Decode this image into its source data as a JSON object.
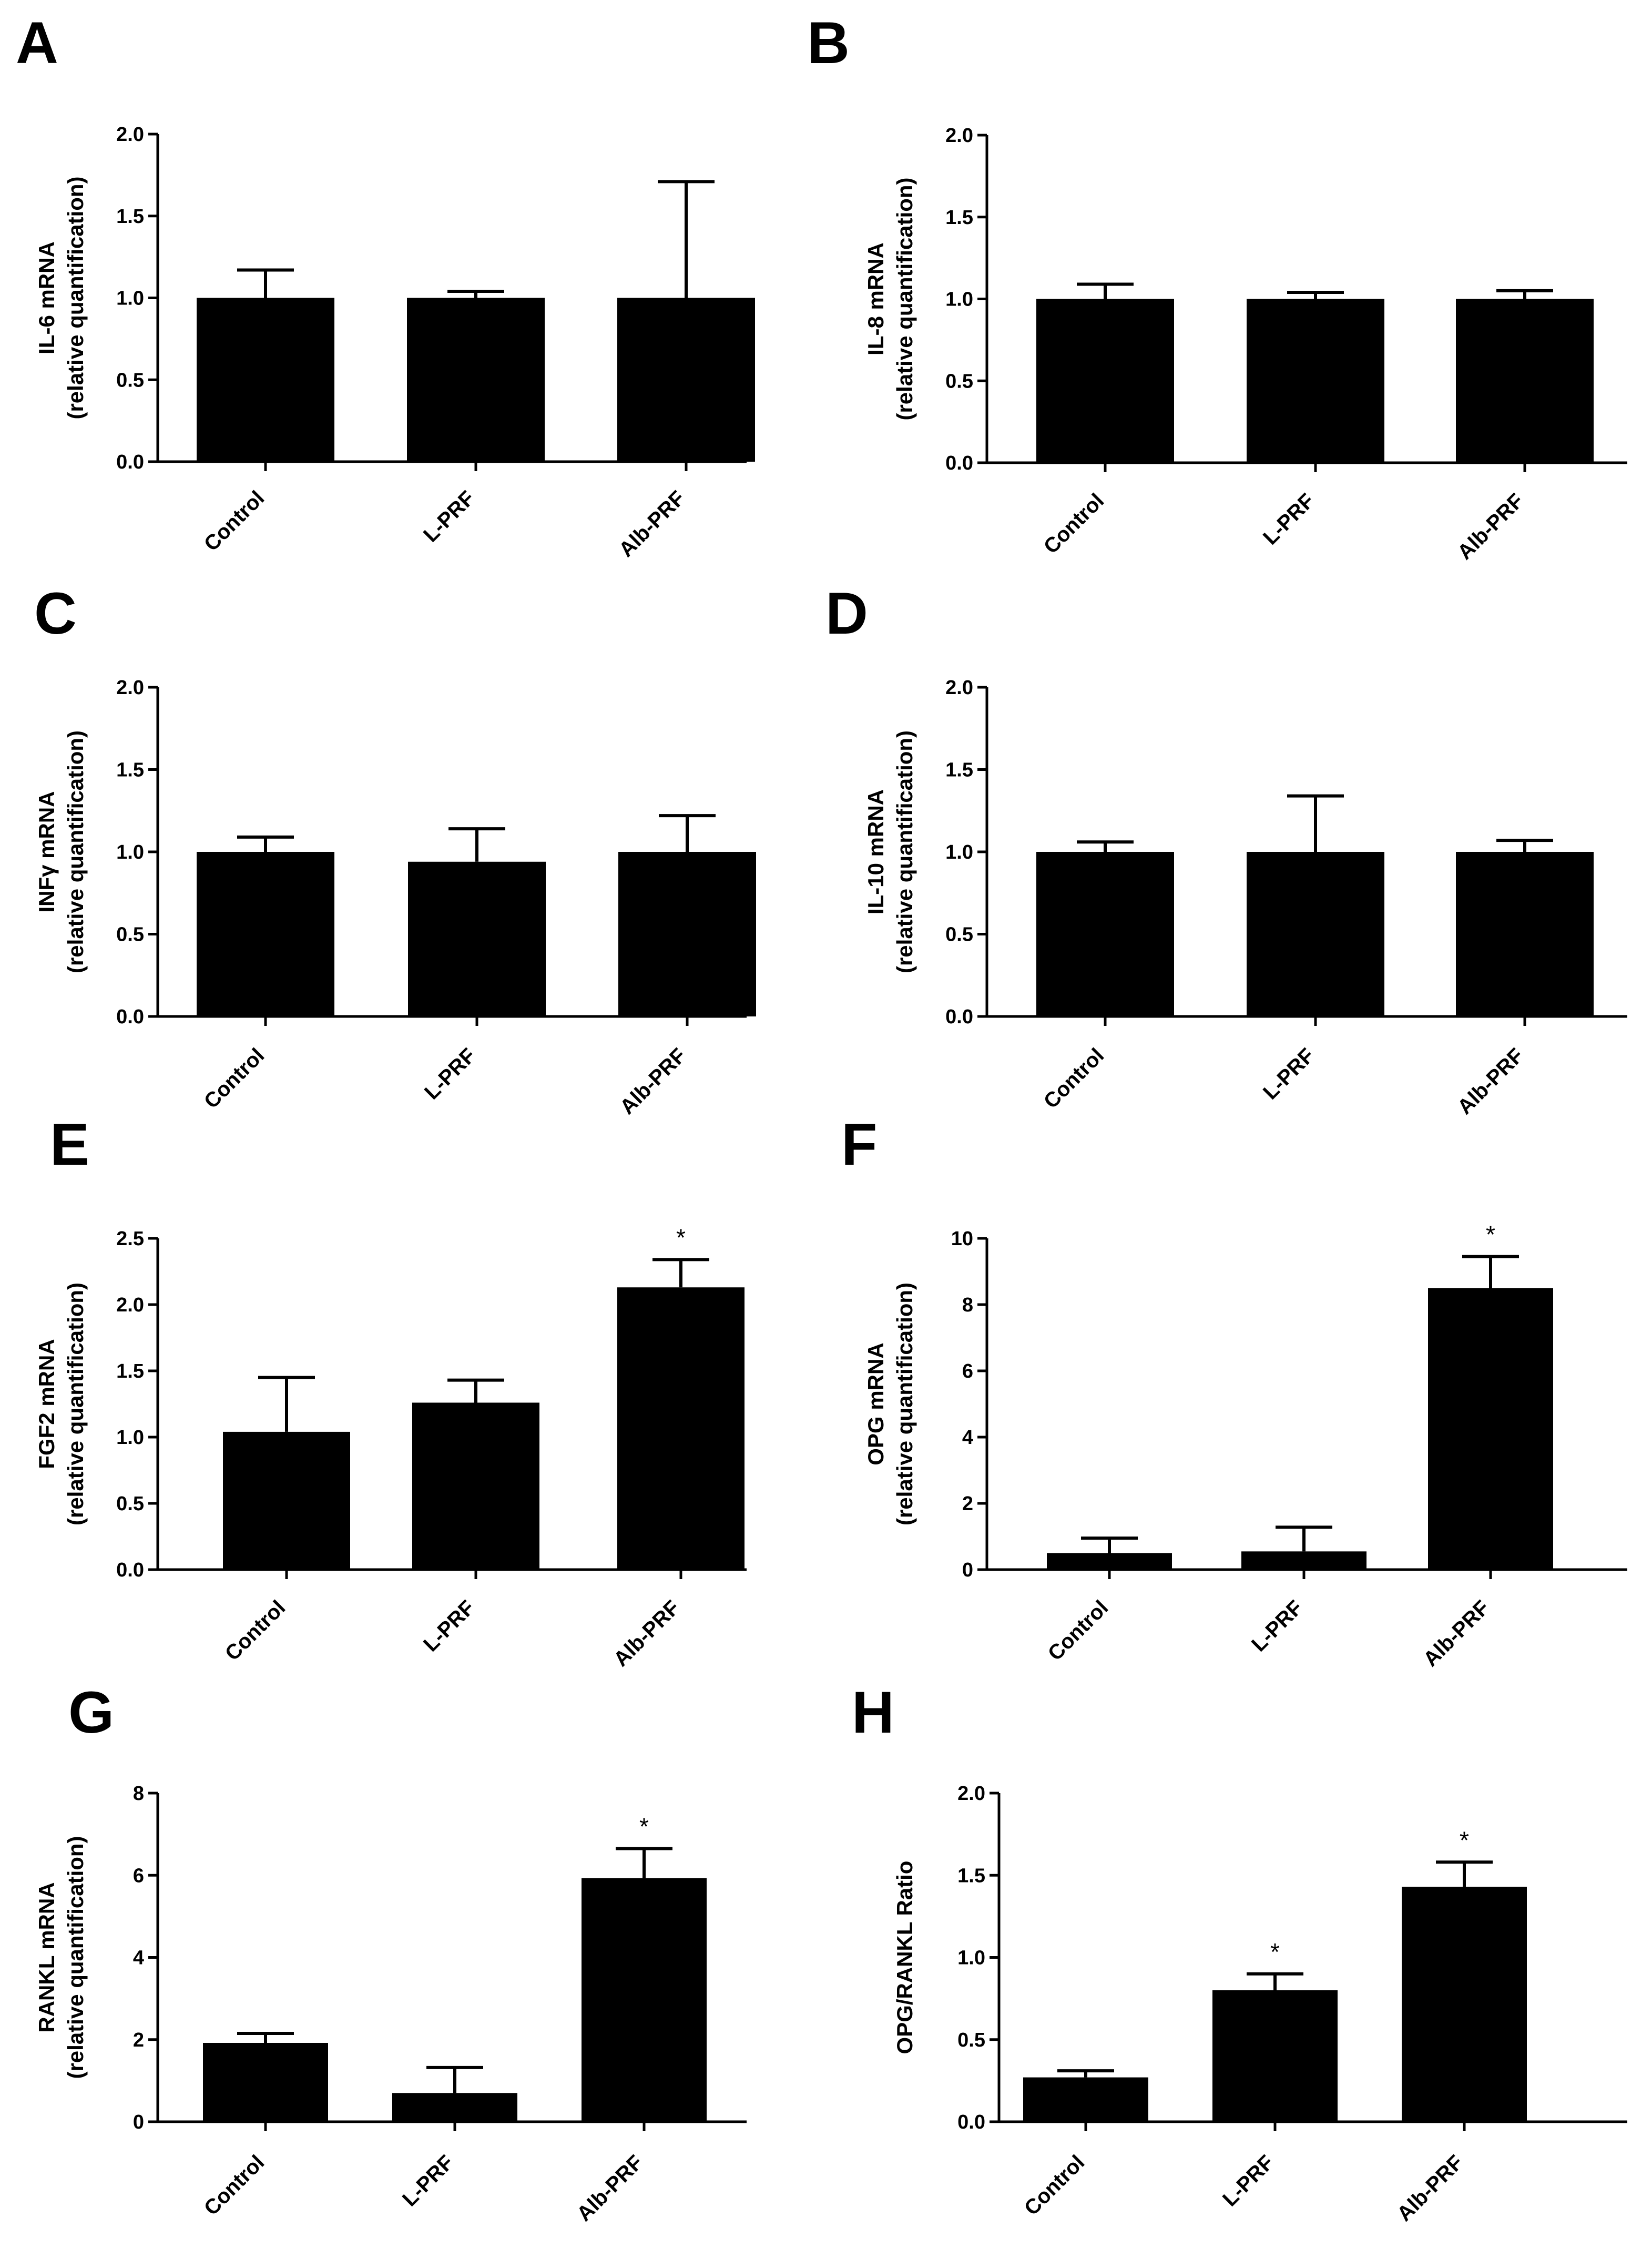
{
  "colors": {
    "bar": "#000000",
    "axis": "#000000",
    "background": "#ffffff"
  },
  "chart_data": [
    {
      "panel": "A",
      "type": "bar",
      "ylabel": "IL-6 mRNA",
      "ylabel2": "(relative quantification)",
      "ylim": [
        0,
        2.0
      ],
      "yticks": [
        "0.0",
        "0.5",
        "1.0",
        "1.5",
        "2.0"
      ],
      "categories": [
        "Control",
        "L-PRF",
        "Alb-PRF"
      ],
      "values": [
        1.0,
        1.0,
        1.0
      ],
      "errors": [
        0.17,
        0.04,
        0.71
      ],
      "significance": [
        "",
        "",
        ""
      ]
    },
    {
      "panel": "B",
      "type": "bar",
      "ylabel": "IL-8 mRNA",
      "ylabel2": "(relative quantification)",
      "ylim": [
        0,
        2.0
      ],
      "yticks": [
        "0.0",
        "0.5",
        "1.0",
        "1.5",
        "2.0"
      ],
      "categories": [
        "Control",
        "L-PRF",
        "Alb-PRF"
      ],
      "values": [
        1.0,
        1.0,
        1.0
      ],
      "errors": [
        0.09,
        0.04,
        0.05
      ],
      "significance": [
        "",
        "",
        ""
      ]
    },
    {
      "panel": "C",
      "type": "bar",
      "ylabel": "INFγ mRNA",
      "ylabel2": "(relative quantification)",
      "ylim": [
        0,
        2.0
      ],
      "yticks": [
        "0.0",
        "0.5",
        "1.0",
        "1.5",
        "2.0"
      ],
      "categories": [
        "Control",
        "L-PRF",
        "Alb-PRF"
      ],
      "values": [
        1.0,
        0.94,
        1.0
      ],
      "errors": [
        0.09,
        0.2,
        0.22
      ],
      "significance": [
        "",
        "",
        ""
      ]
    },
    {
      "panel": "D",
      "type": "bar",
      "ylabel": "IL-10 mRNA",
      "ylabel2": "(relative quantification)",
      "ylim": [
        0,
        2.0
      ],
      "yticks": [
        "0.0",
        "0.5",
        "1.0",
        "1.5",
        "2.0"
      ],
      "categories": [
        "Control",
        "L-PRF",
        "Alb-PRF"
      ],
      "values": [
        1.0,
        1.0,
        1.0
      ],
      "errors": [
        0.06,
        0.34,
        0.07
      ],
      "significance": [
        "",
        "",
        ""
      ]
    },
    {
      "panel": "E",
      "type": "bar",
      "ylabel": "FGF2 mRNA",
      "ylabel2": "(relative quantification)",
      "ylim": [
        0,
        2.5
      ],
      "yticks": [
        "0.0",
        "0.5",
        "1.0",
        "1.5",
        "2.0",
        "2.5"
      ],
      "categories": [
        "Control",
        "L-PRF",
        "Alb-PRF"
      ],
      "values": [
        1.04,
        1.26,
        2.13
      ],
      "errors": [
        0.41,
        0.17,
        0.21
      ],
      "significance": [
        "",
        "",
        "*"
      ]
    },
    {
      "panel": "F",
      "type": "bar",
      "ylabel": "OPG mRNA",
      "ylabel2": "(relative quantification)",
      "ylim": [
        0,
        10
      ],
      "yticks": [
        "0",
        "2",
        "4",
        "6",
        "8",
        "10"
      ],
      "categories": [
        "Control",
        "L-PRF",
        "Alb-PRF"
      ],
      "values": [
        0.5,
        0.55,
        8.5
      ],
      "errors": [
        0.45,
        0.73,
        0.95
      ],
      "significance": [
        "",
        "",
        "*"
      ]
    },
    {
      "panel": "G",
      "type": "bar",
      "ylabel": "RANKL mRNA",
      "ylabel2": "(relative quantification)",
      "ylim": [
        0,
        8
      ],
      "yticks": [
        "0",
        "2",
        "4",
        "6",
        "8"
      ],
      "categories": [
        "Control",
        "L-PRF",
        "Alb-PRF"
      ],
      "values": [
        1.92,
        0.7,
        5.93
      ],
      "errors": [
        0.23,
        0.62,
        0.72
      ],
      "significance": [
        "",
        "",
        "*"
      ]
    },
    {
      "panel": "H",
      "type": "bar",
      "ylabel": "OPG/RANKL Ratio",
      "ylabel2": "",
      "ylim": [
        0,
        2.0
      ],
      "yticks": [
        "0.0",
        "0.5",
        "1.0",
        "1.5",
        "2.0"
      ],
      "categories": [
        "Control",
        "L-PRF",
        "Alb-PRF"
      ],
      "values": [
        0.27,
        0.8,
        1.43
      ],
      "errors": [
        0.04,
        0.1,
        0.15
      ],
      "significance": [
        "",
        "*",
        "*"
      ]
    }
  ]
}
